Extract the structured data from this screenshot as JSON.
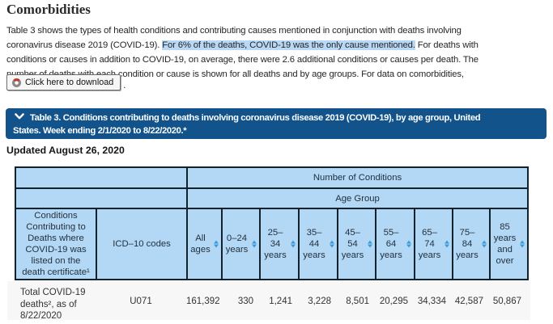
{
  "heading": "Comorbidities",
  "paragraph_lines": [
    {
      "segments": [
        {
          "text": "Table 3 shows the types of health conditions and contributing causes mentioned in conjunction with deaths involving",
          "highlight": false
        }
      ]
    },
    {
      "segments": [
        {
          "text": "coronavirus disease 2019 (COVID-19). ",
          "highlight": false
        },
        {
          "text": "For 6% of the deaths, COVID-19 was the only cause mentioned.",
          "highlight": true
        },
        {
          "text": " For deaths with",
          "highlight": false
        }
      ]
    },
    {
      "segments": [
        {
          "text": "conditions or causes in addition to COVID-19, on average, there were 2.6 additional conditions or causes per death. The",
          "highlight": false
        }
      ]
    },
    {
      "segments": [
        {
          "text": "number of deaths with each condition or cause is shown for all deaths and by age groups. For data on comorbidities,",
          "highlight": false
        }
      ]
    }
  ],
  "download_button": {
    "label": "Click here to download",
    "icon": "donut-chart-icon"
  },
  "after_button_text": ".",
  "accordion": {
    "chevron_icon": "chevron-down-icon",
    "title_lines": [
      "Table 3. Conditions contributing to deaths involving coronavirus disease 2019 (COVID-19), by age group, United",
      "States. Week ending 2/1/2020 to 8/22/2020.*"
    ]
  },
  "updated_text": "Updated August 26, 2020",
  "table": {
    "group_header_1": "Number of Conditions",
    "group_header_2": "Age Group",
    "columns": [
      {
        "label": "Conditions Contributing to Deaths where COVID-19 was listed on the death certificate¹",
        "sortable": false
      },
      {
        "label": "ICD–10 codes",
        "sortable": false
      },
      {
        "label": "All ages",
        "sortable": true
      },
      {
        "label": "0–24 years",
        "sortable": true
      },
      {
        "label": "25–34 years",
        "sortable": true
      },
      {
        "label": "35–44 years",
        "sortable": true
      },
      {
        "label": "45–54 years",
        "sortable": true
      },
      {
        "label": "55–64 years",
        "sortable": true
      },
      {
        "label": "65–74 years",
        "sortable": true
      },
      {
        "label": "75–84 years",
        "sortable": true
      },
      {
        "label": "85 years and over",
        "sortable": true
      }
    ],
    "rows": [
      {
        "condition": "Total COVID-19 deaths², as of 8/22/2020",
        "icd10": "U071",
        "values": [
          "161,392",
          "330",
          "1,241",
          "3,228",
          "8,501",
          "20,295",
          "34,334",
          "42,587",
          "50,867"
        ]
      }
    ]
  },
  "colors": {
    "accent_bar": "#12538c",
    "table_header_bg": "#b3d8f6",
    "table_border": "#12232e",
    "data_row_bg": "#f7f7f7",
    "selection_highlight": "#b9d8f5",
    "sort_icon": "#3f98d8",
    "button_icon_red": "#c0392b",
    "button_icon_gray": "#8a8a8a"
  }
}
